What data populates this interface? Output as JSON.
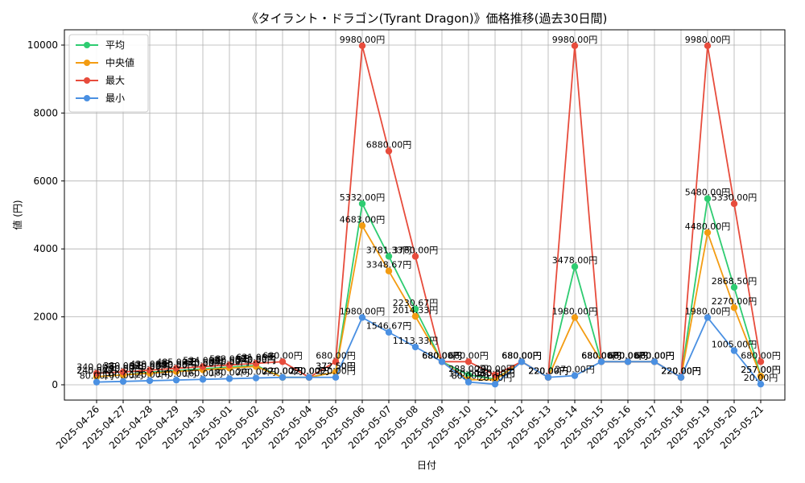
{
  "chart_data": {
    "type": "line",
    "title": "《タイラント・ドラゴン(Tyrant Dragon)》価格推移(過去30日間)",
    "xlabel": "日付",
    "ylabel": "値 (円)",
    "ylim": [
      -450,
      10450
    ],
    "yticks": [
      0,
      2000,
      4000,
      6000,
      8000,
      10000
    ],
    "grid": true,
    "legend": "top-left",
    "value_suffix": "円",
    "categories": [
      "2025-04-26",
      "2025-04-27",
      "2025-04-28",
      "2025-04-29",
      "2025-04-30",
      "2025-05-01",
      "2025-05-02",
      "2025-05-03",
      "2025-05-04",
      "2025-05-05",
      "2025-05-06",
      "2025-05-07",
      "2025-05-08",
      "2025-05-09",
      "2025-05-10",
      "2025-05-11",
      "2025-05-12",
      "2025-05-13",
      "2025-05-14",
      "2025-05-15",
      "2025-05-16",
      "2025-05-17",
      "2025-05-18",
      "2025-05-19",
      "2025-05-20",
      "2025-05-21"
    ],
    "series": [
      {
        "name": "平均",
        "color": "#2ecc71",
        "values": [
          240.5,
          290.5,
          370.5,
          420.5,
          470.5,
          520.5,
          570.5,
          220,
          220,
          372.5,
          5332,
          3781.33,
          2230.67,
          680,
          288,
          170,
          680,
          220,
          3478,
          680,
          680,
          680,
          220,
          5480,
          2868.5,
          257
        ]
      },
      {
        "name": "中央値",
        "color": "#f39c12",
        "values": [
          240,
          290,
          340,
          390,
          440,
          490,
          540,
          220,
          220,
          372.5,
          4683,
          3348.67,
          2014.33,
          680,
          150,
          150,
          680,
          220,
          1980,
          680,
          680,
          680,
          220,
          4480,
          2270,
          257
        ]
      },
      {
        "name": "最大",
        "color": "#e74c3c",
        "values": [
          340,
          380,
          430,
          485,
          534,
          582,
          631,
          680,
          220,
          680,
          9980,
          6880,
          3780,
          680,
          680,
          290,
          680,
          220,
          9980,
          680,
          680,
          680,
          220,
          9980,
          5330,
          680
        ]
      },
      {
        "name": "最小",
        "color": "#4a90e2",
        "values": [
          80,
          100,
          120,
          140,
          160,
          180,
          200,
          220,
          220,
          220,
          1980,
          1546.67,
          1113.33,
          680,
          80,
          20,
          680,
          220,
          270,
          680,
          680,
          680,
          220,
          1980,
          1005,
          20
        ]
      }
    ]
  }
}
